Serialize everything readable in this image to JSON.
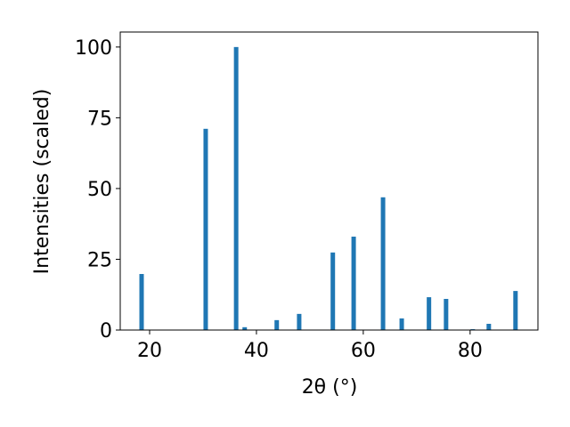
{
  "chart_data": {
    "type": "bar",
    "x_label": "2θ (°)",
    "y_label": "Intensities (scaled)",
    "x": [
      18.5,
      30.5,
      36.2,
      37.8,
      43.8,
      48.0,
      54.3,
      58.2,
      63.7,
      67.2,
      72.3,
      75.5,
      80.5,
      83.5,
      88.5
    ],
    "values": [
      19.8,
      71.1,
      100,
      1,
      3.5,
      5.7,
      27.4,
      33,
      46.9,
      4.1,
      11.6,
      11,
      0.3,
      2.2,
      13.8
    ],
    "color": "#1f77b4",
    "xlim": [
      14.5,
      92.7
    ],
    "ylim": [
      0,
      105.3
    ],
    "xticks": [
      20,
      40,
      60,
      80
    ],
    "yticks": [
      0,
      25,
      50,
      75,
      100
    ]
  }
}
